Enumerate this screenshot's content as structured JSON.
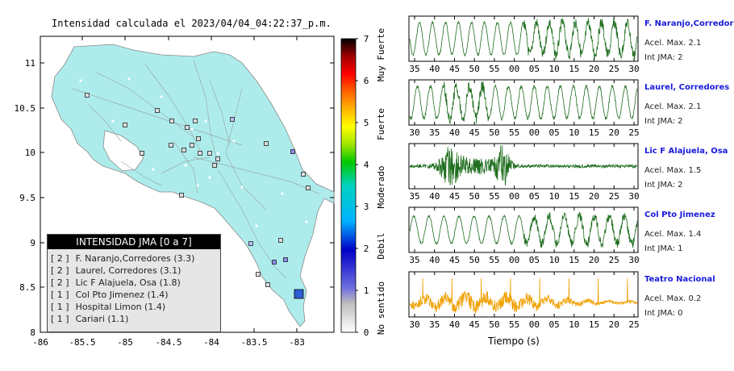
{
  "map": {
    "title": "Intensidad calculada el 2023/04/04_04:22:37_p.m.",
    "lon_ticks": [
      "-86",
      "-85.5",
      "-85",
      "-84.5",
      "-84",
      "-83.5",
      "-83"
    ],
    "lat_ticks": [
      "8",
      "8.5",
      "9",
      "9.5",
      "10",
      "10.5",
      "11"
    ],
    "land_color": "#aeecec",
    "epicenter_color": "#2d5fd6",
    "legend": {
      "title": "INTENSIDAD JMA [0 a 7]",
      "entries": [
        {
          "level": "[ 2 ]",
          "label": "F. Naranjo,Corredores (3.3)"
        },
        {
          "level": "[ 2 ]",
          "label": "Laurel, Corredores (3.1)"
        },
        {
          "level": "[ 2 ]",
          "label": "Lic F Alajuela, Osa (1.8)"
        },
        {
          "level": "[ 1 ]",
          "label": "Col Pto Jimenez (1.4)"
        },
        {
          "level": "[ 1 ]",
          "label": "Hospital Limon (1.4)"
        },
        {
          "level": "[ 1 ]",
          "label": "Cariari (1.1)"
        }
      ]
    }
  },
  "scale": {
    "ticks": [
      "0",
      "1",
      "2",
      "3",
      "4",
      "5",
      "6",
      "7"
    ],
    "categories": [
      "No sentido",
      "Debil",
      "Moderado",
      "Fuerte",
      "Muy Fuerte"
    ]
  },
  "waveforms": {
    "xlabel": "Tiempo (s)",
    "stations": [
      {
        "name": "F. Naranjo,Corredores",
        "acel": "Acel. Max. 2.1",
        "int": "Int JMA: 2",
        "color": "#1f6e1f",
        "ticks": [
          "35",
          "40",
          "45",
          "50",
          "55",
          "00",
          "05",
          "10",
          "15",
          "20",
          "25",
          "30"
        ]
      },
      {
        "name": "Laurel, Corredores",
        "acel": "Acel. Max. 2.1",
        "int": "Int JMA: 2",
        "color": "#1f6e1f",
        "ticks": [
          "30",
          "35",
          "40",
          "45",
          "50",
          "55",
          "00",
          "05",
          "10",
          "15",
          "20",
          "25"
        ]
      },
      {
        "name": "Lic F Alajuela, Osa",
        "acel": "Acel. Max. 1.5",
        "int": "Int JMA: 2",
        "color": "#1f6e1f",
        "ticks": [
          "35",
          "40",
          "45",
          "50",
          "55",
          "00",
          "05",
          "10",
          "15",
          "20",
          "25",
          "30"
        ]
      },
      {
        "name": "Col Pto Jimenez",
        "acel": "Acel. Max. 1.4",
        "int": "Int JMA: 1",
        "color": "#1f6e1f",
        "ticks": [
          "35",
          "40",
          "45",
          "50",
          "55",
          "00",
          "05",
          "10",
          "15",
          "20",
          "25",
          "30"
        ]
      },
      {
        "name": "Teatro Nacional",
        "acel": "Acel. Max. 0.2",
        "int": "Int JMA: 0",
        "color": "#f0a000",
        "ticks": [
          "30",
          "35",
          "40",
          "45",
          "50",
          "55",
          "00",
          "05",
          "10",
          "15",
          "20",
          "25"
        ]
      }
    ]
  }
}
